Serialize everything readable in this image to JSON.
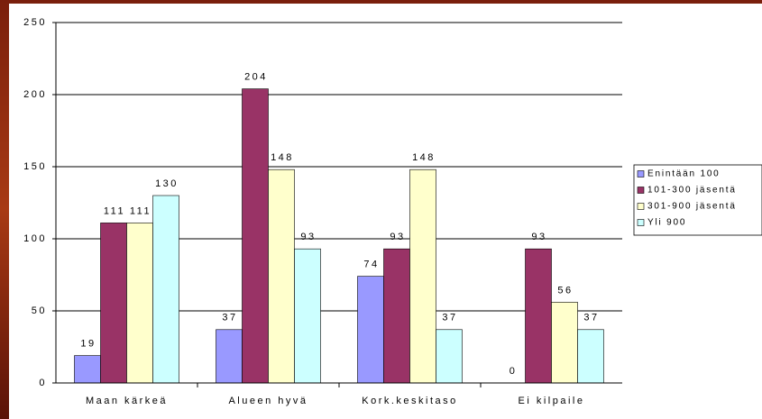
{
  "chart_data": {
    "type": "bar",
    "categories": [
      "Maan kärkeä",
      "Alueen hyvä",
      "Kork.keskitaso",
      "Ei kilpaile"
    ],
    "series": [
      {
        "name": "Enintään 100",
        "color": "#9999ff",
        "values": [
          19,
          37,
          74,
          0
        ]
      },
      {
        "name": "101-300 jäsentä",
        "color": "#993366",
        "values": [
          111,
          204,
          93,
          93
        ]
      },
      {
        "name": "301-900 jäsentä",
        "color": "#ffffcc",
        "values": [
          111,
          148,
          148,
          56
        ]
      },
      {
        "name": "Yli 900",
        "color": "#ccffff",
        "values": [
          130,
          93,
          37,
          37
        ]
      }
    ],
    "ylim": [
      0,
      250
    ],
    "yticks": [
      0,
      50,
      100,
      150,
      200,
      250
    ],
    "grid": true,
    "legend": "right"
  }
}
